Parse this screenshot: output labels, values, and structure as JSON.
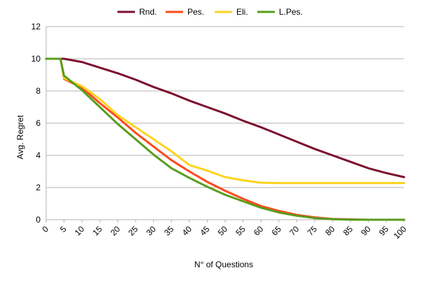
{
  "chart_data": {
    "type": "line",
    "title": "",
    "xlabel": "N° of Questions",
    "ylabel": "Avg. Regret",
    "xlim": [
      0,
      100
    ],
    "ylim": [
      0,
      12
    ],
    "x_ticks": [
      "0",
      "5",
      "10",
      "15",
      "20",
      "25",
      "30",
      "35",
      "40",
      "45",
      "50",
      "55",
      "60",
      "65",
      "70",
      "75",
      "80",
      "85",
      "90",
      "95",
      "100"
    ],
    "y_ticks": [
      "0",
      "2",
      "4",
      "6",
      "8",
      "10",
      "12"
    ],
    "grid": "horizontal",
    "legend_position": "top",
    "x": [
      0,
      3,
      4,
      5,
      10,
      15,
      20,
      25,
      30,
      35,
      40,
      45,
      50,
      55,
      60,
      65,
      70,
      75,
      80,
      85,
      90,
      95,
      100
    ],
    "series": [
      {
        "name": "Rnd.",
        "color": "#7B0F2E",
        "values": [
          10,
          10,
          10,
          10,
          9.8,
          9.45,
          9.1,
          8.7,
          8.25,
          7.85,
          7.4,
          7.0,
          6.6,
          6.15,
          5.75,
          5.3,
          4.85,
          4.4,
          4.0,
          3.6,
          3.2,
          2.9,
          2.65
        ]
      },
      {
        "name": "Pes.",
        "color": "#FF4A1C",
        "values": [
          10,
          10,
          10,
          8.75,
          8.2,
          7.25,
          6.35,
          5.4,
          4.55,
          3.7,
          3.0,
          2.35,
          1.8,
          1.3,
          0.85,
          0.55,
          0.3,
          0.15,
          0.05,
          0.02,
          0,
          0,
          0
        ]
      },
      {
        "name": "Eli.",
        "color": "#FFD320",
        "values": [
          10,
          10,
          10,
          8.8,
          8.3,
          7.5,
          6.5,
          5.75,
          5.0,
          4.25,
          3.4,
          3.05,
          2.65,
          2.45,
          2.3,
          2.28,
          2.28,
          2.28,
          2.28,
          2.28,
          2.28,
          2.28,
          2.28
        ]
      },
      {
        "name": "L.Pes.",
        "color": "#579D1C",
        "values": [
          10,
          10,
          10,
          8.95,
          8.05,
          7.0,
          5.95,
          5.0,
          4.05,
          3.2,
          2.6,
          2.05,
          1.55,
          1.15,
          0.75,
          0.45,
          0.25,
          0.1,
          0.03,
          0,
          0,
          0,
          0
        ]
      }
    ]
  }
}
